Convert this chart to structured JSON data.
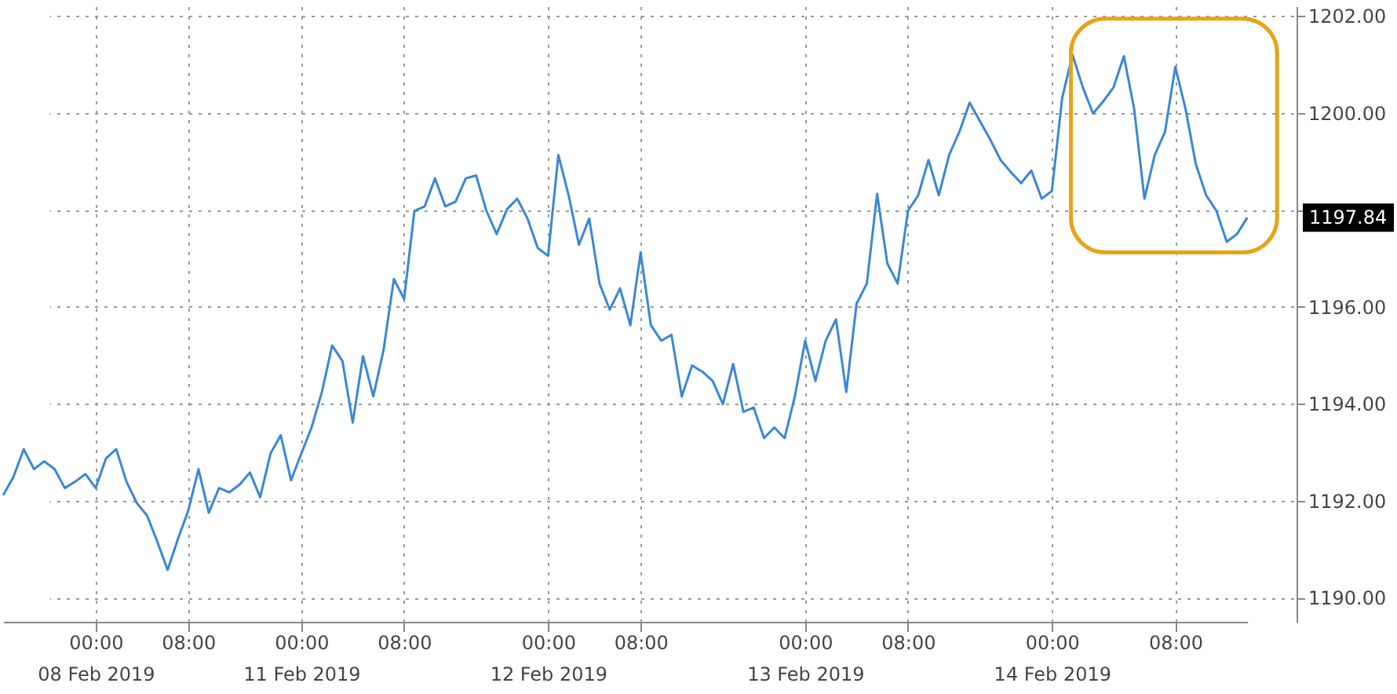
{
  "chart_data": {
    "type": "line",
    "categories": [
      null,
      null,
      null,
      null,
      null,
      null,
      null,
      null,
      null,
      "00:00\n08 Feb 2019",
      null,
      null,
      null,
      null,
      null,
      null,
      null,
      null,
      "08:00",
      null,
      null,
      null,
      null,
      null,
      null,
      null,
      null,
      null,
      null,
      "00:00\n11 Feb 2019",
      null,
      null,
      null,
      null,
      null,
      null,
      null,
      null,
      null,
      "08:00",
      null,
      null,
      null,
      null,
      null,
      null,
      null,
      null,
      null,
      null,
      null,
      null,
      null,
      "00:00\n12 Feb 2019",
      null,
      null,
      null,
      null,
      null,
      null,
      null,
      null,
      "08:00",
      null,
      null,
      null,
      null,
      null,
      null,
      null,
      null,
      null,
      null,
      null,
      null,
      null,
      null,
      null,
      "00:00\n13 Feb 2019",
      null,
      null,
      null,
      null,
      null,
      null,
      null,
      null,
      null,
      "08:00",
      null,
      null,
      null,
      null,
      null,
      null,
      null,
      null,
      null,
      null,
      null,
      null,
      null,
      "00:00\n14 Feb 2019",
      null,
      null,
      null,
      null,
      null,
      null,
      null,
      null,
      null,
      null,
      null,
      "08:00",
      null,
      null,
      null,
      null,
      null,
      null,
      null
    ],
    "series": [
      {
        "color": "#3a87d8",
        "values": [
          1192.11,
          1192.49,
          1193.06,
          1192.65,
          1192.81,
          1192.65,
          1192.26,
          1192.39,
          1192.55,
          1192.26,
          1192.87,
          1193.06,
          1192.39,
          1191.95,
          1191.69,
          1191.15,
          1190.57,
          1191.21,
          1191.79,
          1192.65,
          1191.75,
          1192.26,
          1192.17,
          1192.33,
          1192.58,
          1192.07,
          1192.97,
          1193.35,
          1192.42,
          1192.97,
          1193.51,
          1194.24,
          1195.2,
          1194.88,
          1193.61,
          1194.98,
          1194.15,
          1195.11,
          1196.57,
          1196.16,
          1197.98,
          1198.07,
          1198.65,
          1198.07,
          1198.17,
          1198.65,
          1198.71,
          1197.98,
          1197.5,
          1198.01,
          1198.23,
          1197.82,
          1197.21,
          1197.05,
          1199.13,
          1198.3,
          1197.28,
          1197.82,
          1196.48,
          1195.94,
          1196.38,
          1195.62,
          1197.12,
          1195.62,
          1195.3,
          1195.42,
          1194.15,
          1194.79,
          1194.66,
          1194.47,
          1193.99,
          1194.82,
          1193.83,
          1193.92,
          1193.29,
          1193.51,
          1193.29,
          1194.15,
          1195.3,
          1194.47,
          1195.3,
          1195.74,
          1194.24,
          1196.06,
          1196.48,
          1198.33,
          1196.89,
          1196.48,
          1197.98,
          1198.3,
          1199.03,
          1198.3,
          1199.13,
          1199.61,
          1200.21,
          1199.83,
          1199.45,
          1199.03,
          1198.78,
          1198.55,
          1198.81,
          1198.23,
          1198.39,
          1200.31,
          1201.2,
          1200.53,
          1199.99,
          1200.24,
          1200.53,
          1201.17,
          1200.08,
          1198.23,
          1199.13,
          1199.61,
          1200.95,
          1200.08,
          1198.94,
          1198.3,
          1197.98,
          1197.34,
          1197.5,
          1197.84
        ]
      }
    ],
    "ylim": [
      1189.5,
      1202.2
    ],
    "yticks": [
      {
        "value": 1190,
        "label": "1190.00"
      },
      {
        "value": 1192,
        "label": "1192.00"
      },
      {
        "value": 1194,
        "label": "1194.00"
      },
      {
        "value": 1196,
        "label": "1196.00"
      },
      {
        "value": 1198,
        "label": null
      },
      {
        "value": 1200,
        "label": "1200.00"
      },
      {
        "value": 1202,
        "label": "1202.00"
      }
    ],
    "grid": true,
    "annotations": [
      "1197.84"
    ]
  }
}
